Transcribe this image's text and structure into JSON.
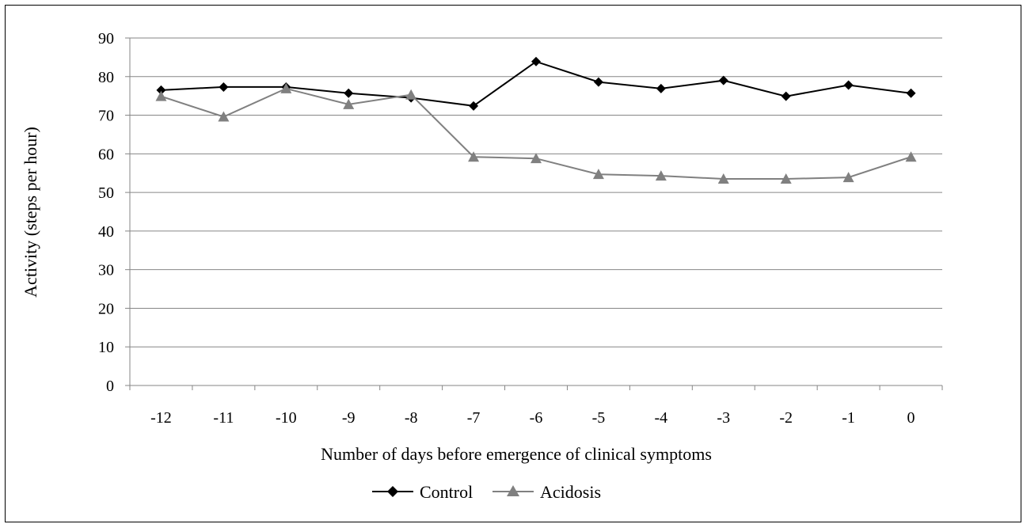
{
  "chart_data": {
    "type": "line",
    "title": "",
    "xlabel": "Number of days before emergence of clinical symptoms",
    "ylabel": "Activity (steps per hour)",
    "categories": [
      "-12",
      "-11",
      "-10",
      "-9",
      "-8",
      "-7",
      "-6",
      "-5",
      "-4",
      "-3",
      "-2",
      "-1",
      "0"
    ],
    "ylim": [
      0,
      90
    ],
    "yticks": [
      "0",
      "10",
      "20",
      "30",
      "40",
      "50",
      "60",
      "70",
      "80",
      "90"
    ],
    "grid": "horizontal",
    "legend_position": "bottom",
    "series": [
      {
        "name": "Control",
        "marker": "diamond",
        "color": "#000000",
        "values": [
          76.5,
          77.3,
          77.3,
          75.7,
          74.5,
          72.4,
          83.9,
          78.6,
          76.9,
          79.0,
          74.9,
          77.8,
          75.7
        ]
      },
      {
        "name": "Acidosis",
        "marker": "triangle",
        "color": "#808080",
        "values": [
          74.9,
          69.6,
          76.9,
          72.8,
          75.3,
          59.2,
          58.8,
          54.7,
          54.3,
          53.5,
          53.5,
          53.9,
          59.2
        ]
      }
    ]
  }
}
